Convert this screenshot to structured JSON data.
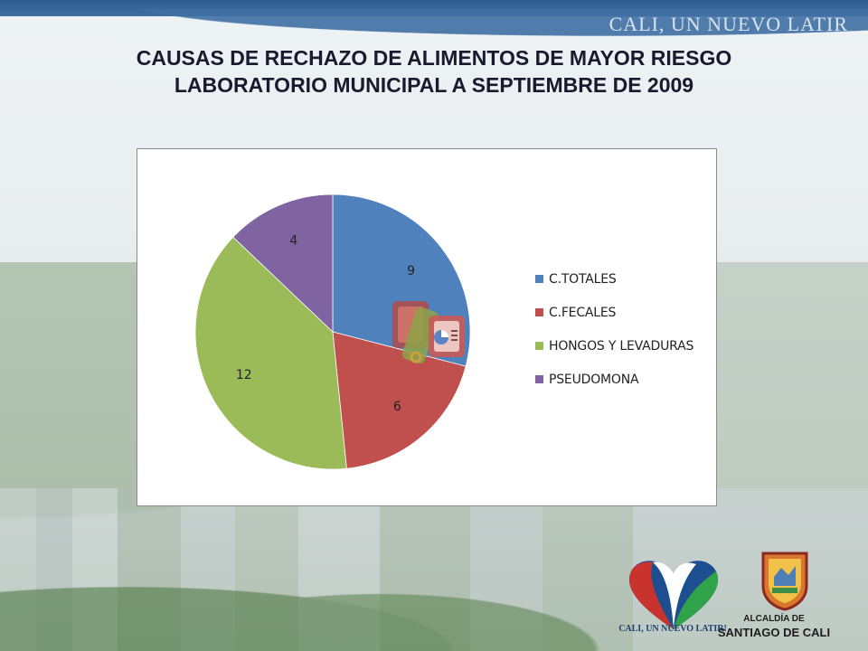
{
  "slide": {
    "title_line1": "CAUSAS DE RECHAZO DE ALIMENTOS DE MAYOR RIESGO",
    "title_line2": "LABORATORIO MUNICIPAL A SEPTIEMBRE DE 2009",
    "slogan": "CALI, UN NUEVO LATIR",
    "heart_logo_text": "CALI, UN NUEVO LATIR!",
    "alcaldia_line1": "ALCALDÍA DE",
    "alcaldia_line2": "SANTIAGO DE CALI"
  },
  "chart_data": {
    "type": "pie",
    "categories": [
      "C.TOTALES",
      "C.FECALES",
      "HONGOS Y LEVADURAS",
      "PSEUDOMONA"
    ],
    "values": [
      9,
      6,
      12,
      4
    ],
    "data_labels": [
      "9",
      "6",
      "12",
      "4"
    ],
    "colors": [
      "#4f81bd",
      "#c0504d",
      "#9bbb59",
      "#8064a2"
    ],
    "legend_position": "right",
    "start": "12 o'clock, clockwise"
  }
}
